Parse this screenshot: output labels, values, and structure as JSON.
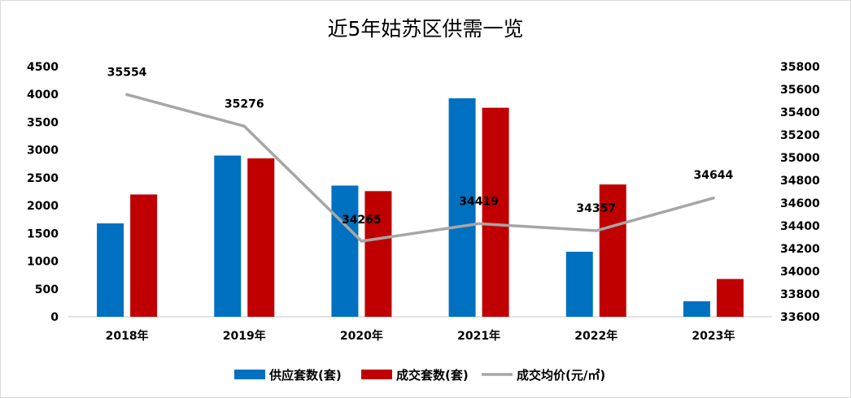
{
  "chart_data": {
    "type": "bar",
    "title": "近5年姑苏区供需一览",
    "categories": [
      "2018年",
      "2019年",
      "2020年",
      "2021年",
      "2022年",
      "2023年"
    ],
    "series": [
      {
        "name": "供应套数(套)",
        "kind": "bar",
        "axis": "left",
        "color": "#0070c0",
        "values": [
          1680,
          2900,
          2360,
          3930,
          1170,
          280
        ]
      },
      {
        "name": "成交套数(套)",
        "kind": "bar",
        "axis": "left",
        "color": "#c00000",
        "values": [
          2200,
          2850,
          2260,
          3760,
          2380,
          680
        ]
      },
      {
        "name": "成交均价(元/㎡)",
        "kind": "line",
        "axis": "right",
        "color": "#a6a6a6",
        "values": [
          35554,
          35276,
          34265,
          34419,
          34357,
          34644
        ],
        "labels": [
          "35554",
          "35276",
          "34265",
          "34419",
          "34357",
          "34644"
        ]
      }
    ],
    "y_left": {
      "lim": [
        0,
        4500
      ],
      "ticks": [
        "0",
        "500",
        "1000",
        "1500",
        "2000",
        "2500",
        "3000",
        "3500",
        "4000",
        "4500"
      ]
    },
    "y_right": {
      "lim": [
        33600,
        35800
      ],
      "ticks": [
        "33600",
        "33800",
        "34000",
        "34200",
        "34400",
        "34600",
        "34800",
        "35000",
        "35200",
        "35400",
        "35600",
        "35800"
      ]
    },
    "xlabel": "",
    "ylabel": "",
    "grid": false,
    "legend_position": "bottom"
  }
}
